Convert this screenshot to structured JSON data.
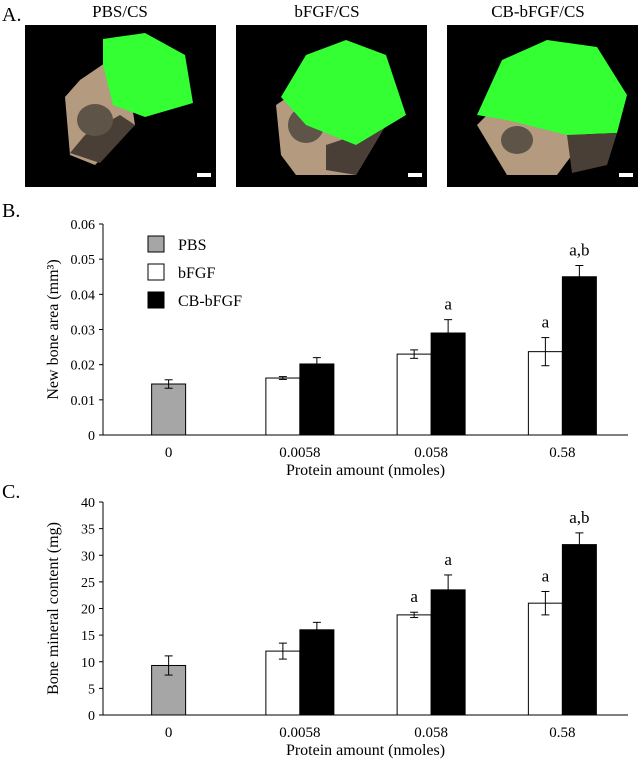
{
  "panels": {
    "a_label": "A.",
    "b_label": "B.",
    "c_label": "C."
  },
  "images": [
    {
      "title": "PBS/CS"
    },
    {
      "title": "bFGF/CS"
    },
    {
      "title": "CB-bFGF/CS"
    }
  ],
  "colors": {
    "pbs": "#a6a6a6",
    "bfgf": "#ffffff",
    "cb_bfgf": "#000000",
    "scan_green": "#33ff33",
    "bone": "#b49a7e"
  },
  "chart_data": [
    {
      "type": "bar",
      "categories": [
        "0",
        "0.0058",
        "0.058",
        "0.58"
      ],
      "xlabel": "Protein amount (nmoles)",
      "ylabel": "New bone area (mm³)",
      "ylim": [
        0,
        0.06
      ],
      "yticks": [
        "0",
        "0.01",
        "0.02",
        "0.03",
        "0.04",
        "0.05",
        "0.06"
      ],
      "legend": "top-left",
      "series": [
        {
          "name": "PBS",
          "color": "#a6a6a6",
          "values": [
            0.0145,
            null,
            null,
            null
          ],
          "errors": [
            0.0012,
            null,
            null,
            null
          ]
        },
        {
          "name": "bFGF",
          "color": "#ffffff",
          "values": [
            null,
            0.0162,
            0.023,
            0.0237
          ],
          "errors": [
            null,
            0.0004,
            0.0012,
            0.004
          ]
        },
        {
          "name": "CB-bFGF",
          "color": "#000000",
          "values": [
            null,
            0.0202,
            0.029,
            0.045
          ],
          "errors": [
            null,
            0.0018,
            0.0038,
            0.0032
          ]
        }
      ],
      "annotations": [
        {
          "category": "0.058",
          "series": "CB-bFGF",
          "text": "a"
        },
        {
          "category": "0.58",
          "series": "bFGF",
          "text": "a"
        },
        {
          "category": "0.58",
          "series": "CB-bFGF",
          "text": "a,b"
        }
      ]
    },
    {
      "type": "bar",
      "categories": [
        "0",
        "0.0058",
        "0.058",
        "0.58"
      ],
      "xlabel": "Protein amount (nmoles)",
      "ylabel": "Bone mineral content (mg)",
      "ylim": [
        0,
        40
      ],
      "yticks": [
        "0",
        "5",
        "10",
        "15",
        "20",
        "25",
        "30",
        "35",
        "40"
      ],
      "series": [
        {
          "name": "PBS",
          "color": "#a6a6a6",
          "values": [
            9.3,
            null,
            null,
            null
          ],
          "errors": [
            1.8,
            null,
            null,
            null
          ]
        },
        {
          "name": "bFGF",
          "color": "#ffffff",
          "values": [
            null,
            12.0,
            18.8,
            21.0
          ],
          "errors": [
            null,
            1.5,
            0.5,
            2.2
          ]
        },
        {
          "name": "CB-bFGF",
          "color": "#000000",
          "values": [
            null,
            16.0,
            23.5,
            32.0
          ],
          "errors": [
            null,
            1.4,
            2.8,
            2.2
          ]
        }
      ],
      "annotations": [
        {
          "category": "0.058",
          "series": "bFGF",
          "text": "a"
        },
        {
          "category": "0.058",
          "series": "CB-bFGF",
          "text": "a"
        },
        {
          "category": "0.58",
          "series": "bFGF",
          "text": "a"
        },
        {
          "category": "0.58",
          "series": "CB-bFGF",
          "text": "a,b"
        }
      ]
    }
  ]
}
